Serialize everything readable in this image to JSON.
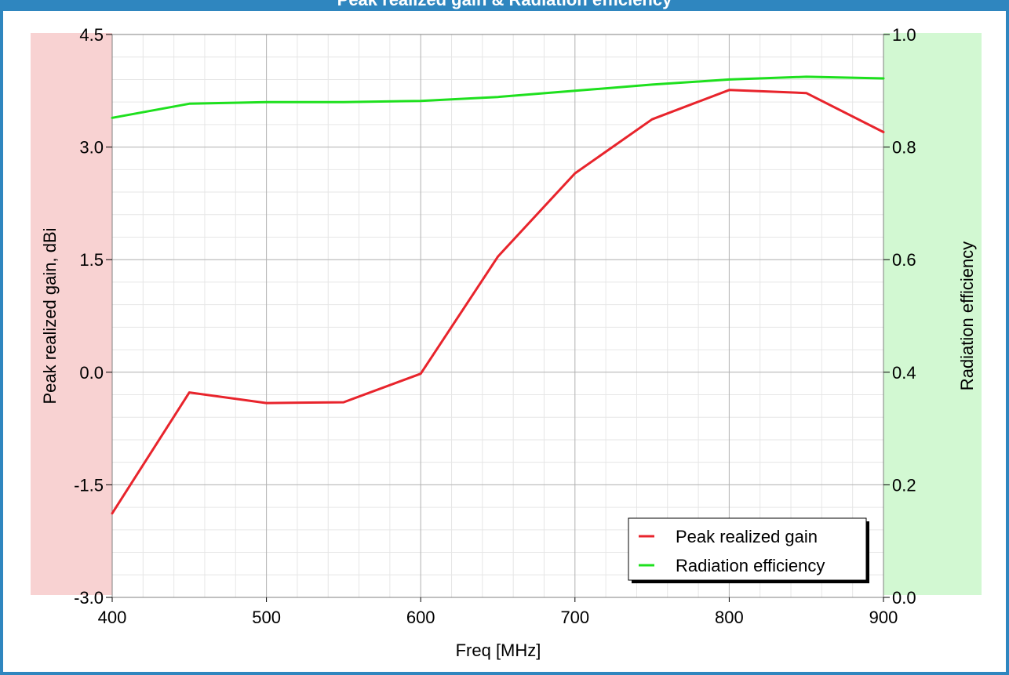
{
  "title": "Peak realized gain & Radiation efficiency",
  "colors": {
    "frame": "#2f86bf",
    "left_panel": "#f8d2d2",
    "right_panel": "#d2f8d2",
    "gain_line": "#e8242c",
    "efficiency_line": "#1ee01e",
    "major_grid": "#b4b4b4",
    "minor_grid": "#e6e6e6"
  },
  "chart_data": {
    "type": "line",
    "title": "Peak realized gain & Radiation efficiency",
    "xlabel": "Freq [MHz]",
    "ylabel_left": "Peak realized gain, dBi",
    "ylabel_right": "Radiation efficiency",
    "xlim": [
      400,
      900
    ],
    "ylim_left": [
      -3.0,
      4.5
    ],
    "ylim_right": [
      0.0,
      1.0
    ],
    "x_ticks": [
      "400",
      "500",
      "600",
      "700",
      "800",
      "900"
    ],
    "y_ticks_left": [
      "4.5",
      "3.0",
      "1.5",
      "0.0",
      "-1.5",
      "-3.0"
    ],
    "y_ticks_right": [
      "1.0",
      "0.8",
      "0.6",
      "0.4",
      "0.2",
      "0.0"
    ],
    "grid": true,
    "legend_position": "bottom-right",
    "x": [
      400,
      450,
      500,
      550,
      600,
      650,
      700,
      750,
      800,
      850,
      900
    ],
    "series": [
      {
        "name": "Peak realized gain",
        "axis": "left",
        "color": "#e8242c",
        "values": [
          -1.88,
          -0.27,
          -0.41,
          -0.4,
          -0.02,
          1.54,
          2.65,
          3.37,
          3.76,
          3.72,
          3.2
        ]
      },
      {
        "name": "Radiation efficiency",
        "axis": "right",
        "color": "#1ee01e",
        "values": [
          0.852,
          0.877,
          0.88,
          0.88,
          0.882,
          0.889,
          0.9,
          0.911,
          0.92,
          0.925,
          0.922
        ]
      }
    ]
  }
}
